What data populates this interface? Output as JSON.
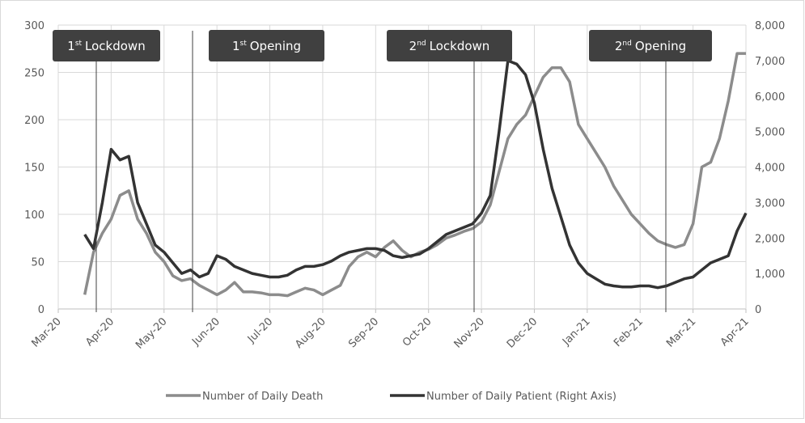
{
  "chart_data": {
    "type": "line",
    "categories": [
      "Mar-20",
      null,
      null,
      null,
      null,
      null,
      "Apr-20",
      null,
      null,
      null,
      null,
      null,
      "May-20",
      null,
      null,
      null,
      null,
      null,
      "Jun-20",
      null,
      null,
      null,
      null,
      null,
      "Jul-20",
      null,
      null,
      null,
      null,
      null,
      "Aug-20",
      null,
      null,
      null,
      null,
      null,
      "Sep-20",
      null,
      null,
      null,
      null,
      null,
      "Oct-20",
      null,
      null,
      null,
      null,
      null,
      "Nov-20",
      null,
      null,
      null,
      null,
      null,
      "Dec-20",
      null,
      null,
      null,
      null,
      null,
      "Jan-21",
      null,
      null,
      null,
      null,
      null,
      "Feb-21",
      null,
      null,
      null,
      null,
      null,
      "Mar-21",
      null,
      null,
      null,
      null,
      null,
      "Apr-21"
    ],
    "series": [
      {
        "name": "Number of Daily Death",
        "color": "#8c8c8c",
        "axis": "y",
        "values": [
          null,
          null,
          null,
          15,
          60,
          80,
          95,
          120,
          125,
          95,
          80,
          60,
          50,
          35,
          30,
          32,
          25,
          20,
          15,
          20,
          28,
          18,
          18,
          17,
          15,
          15,
          14,
          18,
          22,
          20,
          15,
          20,
          25,
          45,
          55,
          60,
          55,
          65,
          72,
          62,
          55,
          60,
          63,
          68,
          75,
          78,
          82,
          85,
          92,
          110,
          145,
          180,
          195,
          205,
          225,
          245,
          255,
          255,
          240,
          195,
          180,
          165,
          150,
          130,
          115,
          100,
          90,
          80,
          72,
          68,
          65,
          68,
          90,
          150,
          155,
          180,
          220,
          270,
          270
        ]
      },
      {
        "name": "Number of Daily Patient (Right Axis)",
        "color": "#333333",
        "axis": "y2",
        "values": [
          null,
          null,
          null,
          2100,
          1700,
          3000,
          4500,
          4200,
          4300,
          3000,
          2400,
          1800,
          1600,
          1300,
          1000,
          1100,
          900,
          1000,
          1500,
          1400,
          1200,
          1100,
          1000,
          950,
          900,
          900,
          950,
          1100,
          1200,
          1200,
          1250,
          1350,
          1500,
          1600,
          1650,
          1700,
          1700,
          1650,
          1500,
          1450,
          1500,
          1550,
          1700,
          1900,
          2100,
          2200,
          2300,
          2400,
          2700,
          3200,
          5000,
          7000,
          6900,
          6600,
          5800,
          4500,
          3400,
          2600,
          1800,
          1300,
          1000,
          850,
          700,
          650,
          620,
          620,
          650,
          650,
          600,
          650,
          750,
          850,
          900,
          1100,
          1300,
          1400,
          1500,
          2200,
          2700
        ]
      }
    ],
    "ylim": [
      0,
      300
    ],
    "yticks": [
      0,
      50,
      100,
      150,
      200,
      250,
      300
    ],
    "y2lim": [
      0,
      8000
    ],
    "y2ticks": [
      0,
      {
        "value": 1000,
        "label": "1,000"
      },
      {
        "value": 2000,
        "label": "2,000"
      },
      {
        "value": 3000,
        "label": "3,000"
      },
      {
        "value": 4000,
        "label": "4,000"
      },
      {
        "value": 5000,
        "label": "5,000"
      },
      {
        "value": 6000,
        "label": "6,000"
      },
      {
        "value": 7000,
        "label": "7,000"
      },
      {
        "value": 8000,
        "label": "8,000"
      }
    ],
    "grid": true,
    "legend": "bottom",
    "annotations": [
      {
        "ordinal": "1",
        "suffix": "st",
        "text": "Lockdown"
      },
      {
        "ordinal": "1",
        "suffix": "st",
        "text": "Opening"
      },
      {
        "ordinal": "2",
        "suffix": "nd",
        "text": "Lockdown"
      },
      {
        "ordinal": "2",
        "suffix": "nd",
        "text": "Opening"
      }
    ]
  }
}
